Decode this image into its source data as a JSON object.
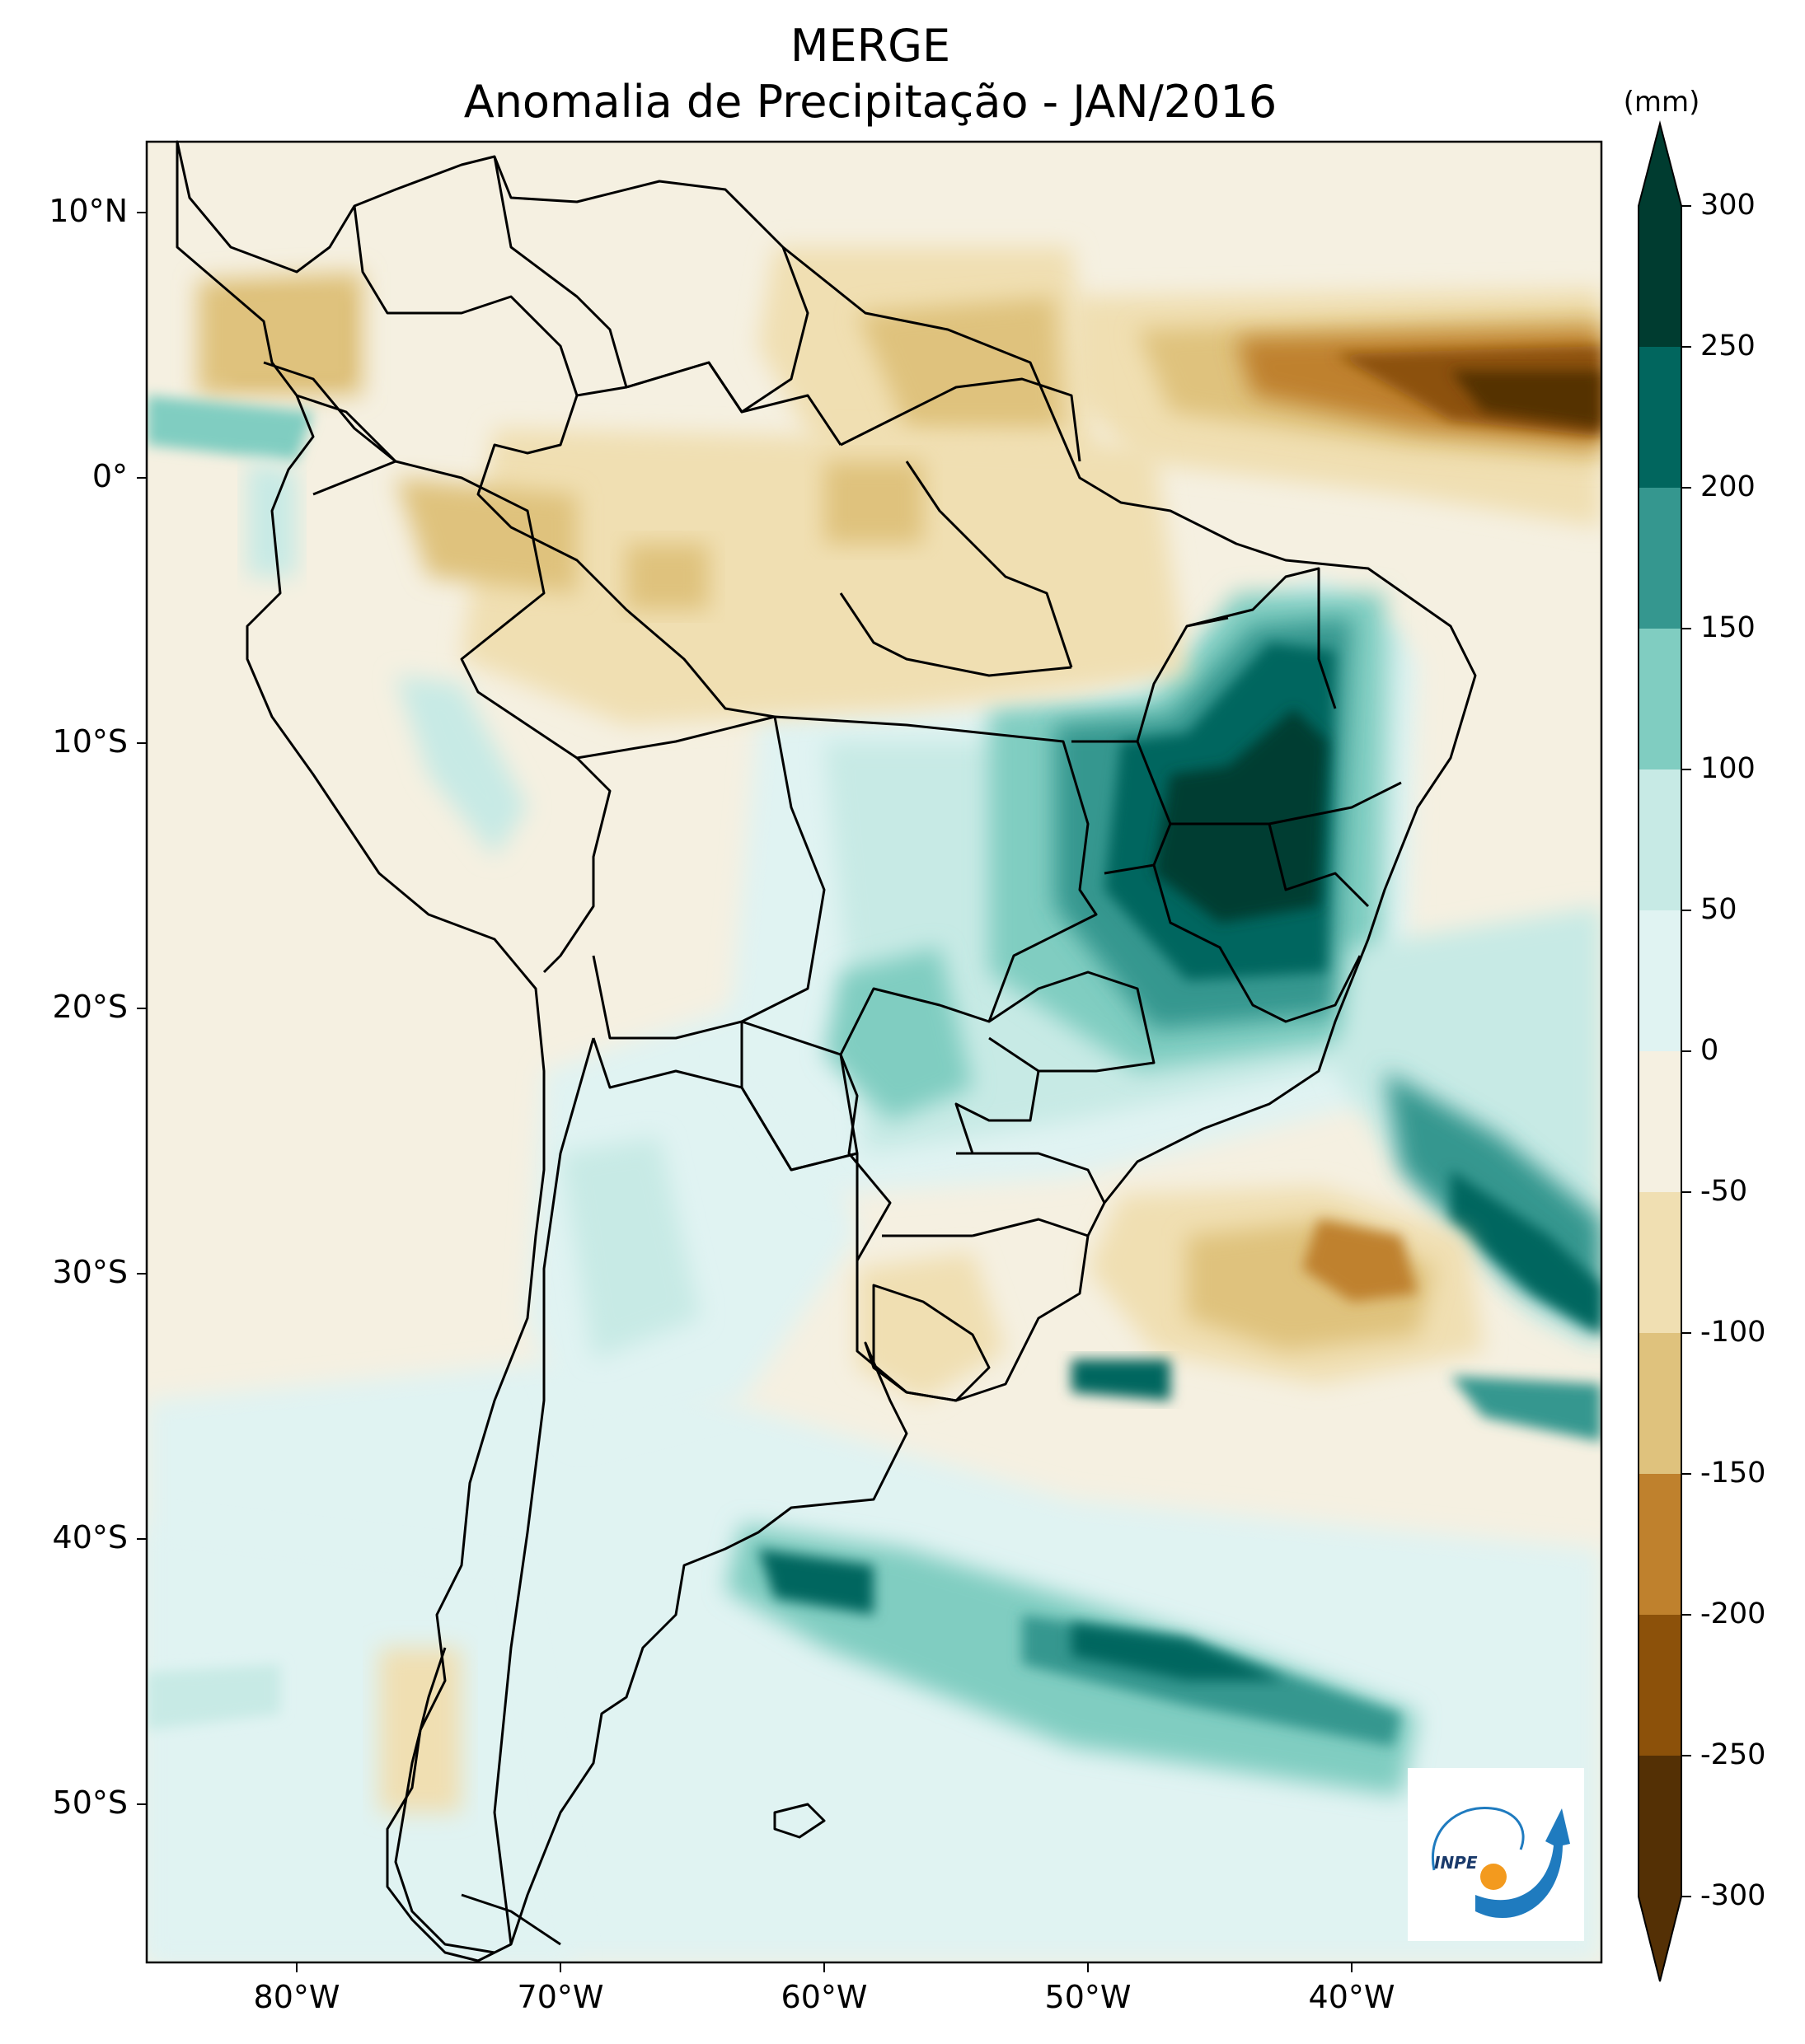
{
  "title": "MERGE",
  "subtitle": "Anomalia de Precipitação - JAN/2016",
  "colorbar": {
    "unit": "(mm)",
    "ticks": [
      "300",
      "250",
      "200",
      "150",
      "100",
      "50",
      "0",
      "-50",
      "-100",
      "-150",
      "-200",
      "-250",
      "-300"
    ],
    "colors": [
      "#003c30",
      "#01665e",
      "#35978f",
      "#80cdc1",
      "#c7eae5",
      "#e0f3f2",
      "#f5f0e1",
      "#f0dfb2",
      "#dfc27d",
      "#bf812d",
      "#8c510a",
      "#543005"
    ]
  },
  "axes": {
    "lat_labels": [
      "10°N",
      "0°",
      "10°S",
      "20°S",
      "30°S",
      "40°S",
      "50°S"
    ],
    "lon_labels": [
      "80°W",
      "70°W",
      "60°W",
      "50°W",
      "40°W"
    ]
  },
  "logo": {
    "text": "INPE"
  }
}
